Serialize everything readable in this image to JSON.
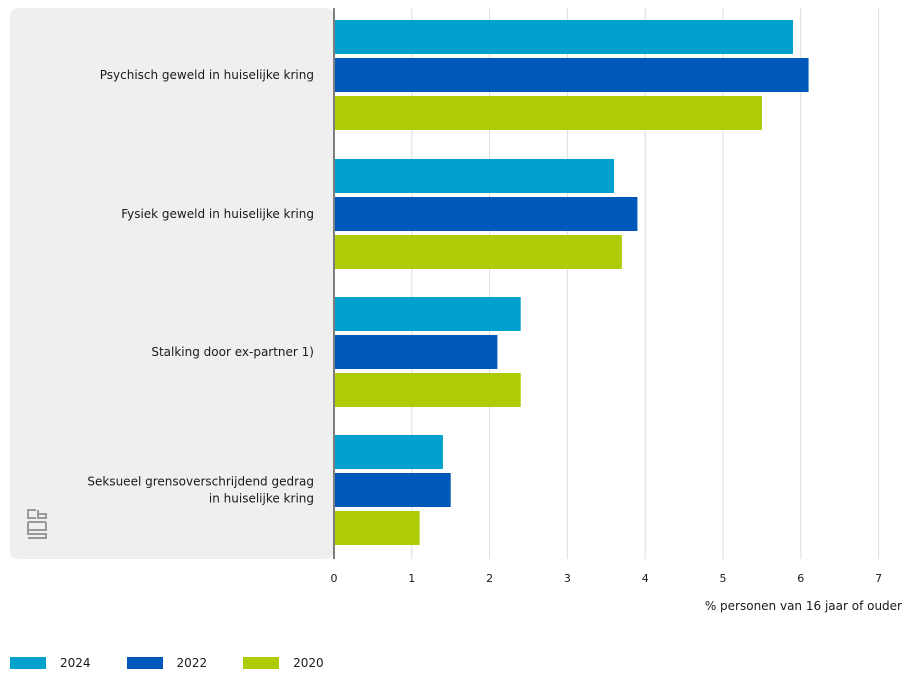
{
  "chart_data": {
    "type": "bar",
    "orientation": "horizontal",
    "categories": [
      [
        "Psychisch geweld in huiselijke kring"
      ],
      [
        "Fysiek geweld in huiselijke kring"
      ],
      [
        "Stalking door ex-partner 1)"
      ],
      [
        "Seksueel grensoverschrijdend gedrag",
        "in huiselijke kring"
      ]
    ],
    "series": [
      {
        "name": "2024",
        "color": "#00a1cd",
        "values": [
          5.9,
          3.6,
          2.4,
          1.4
        ]
      },
      {
        "name": "2022",
        "color": "#0058b8",
        "values": [
          6.1,
          3.9,
          2.1,
          1.5
        ]
      },
      {
        "name": "2020",
        "color": "#afcb05",
        "values": [
          5.5,
          3.7,
          2.4,
          1.1
        ]
      }
    ],
    "xlabel": "% personen van 16 jaar of ouder",
    "xlim": [
      0,
      7
    ],
    "xticks": [
      "0",
      "1",
      "2",
      "3",
      "4",
      "5",
      "6",
      "7"
    ],
    "grid": true,
    "legend_position": "bottom-left"
  },
  "branding": {
    "logo_icon": "cbs-logo-icon"
  }
}
